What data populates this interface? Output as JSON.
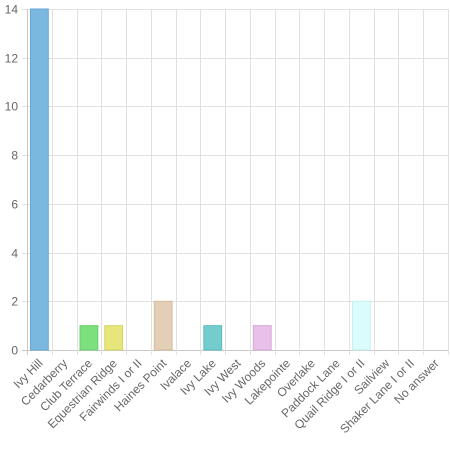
{
  "chart_data": {
    "type": "bar",
    "categories": [
      "Ivy Hill",
      "Cedarberry",
      "Club Terrace",
      "Equestrian Ridge",
      "Fairwinds I or II",
      "Haines Point",
      "Ivalace",
      "Ivy Lake",
      "Ivy West",
      "Ivy Woods",
      "Lakepointe",
      "Overlake",
      "Paddock Lane",
      "Quail Ridge I or II",
      "Sailview",
      "Shaker Lane I or II",
      "No answer"
    ],
    "values": [
      14,
      0,
      1,
      1,
      0,
      2,
      0,
      1,
      0,
      1,
      0,
      0,
      0,
      2,
      0,
      0,
      0
    ],
    "colors": [
      "#7ab8e0",
      "#f7c6b4",
      "#7edf7e",
      "#e6e67a",
      "#bfb7f5",
      "#e3ceb6",
      "#f7c6b4",
      "#74cccc",
      "#c8d8f0",
      "#e8c0e8",
      "#cde8cd",
      "#f0d7b0",
      "#d0d0f0",
      "#dcfcfc",
      "#e6e6e6",
      "#f5e6d6",
      "#e6f0e6"
    ],
    "border_colors": [
      "#67a6d4",
      "#f0b09a",
      "#67cf67",
      "#d4d466",
      "#aaa0ee",
      "#d6bc9e",
      "#f0b09a",
      "#5cbcbc",
      "#b0c4e4",
      "#d8a8d8",
      "#b8d8b8",
      "#e0c494",
      "#bcbce4",
      "#c4f0f0",
      "#d0d0d0",
      "#e8d4c0",
      "#d0e0d0"
    ],
    "ylim": [
      0,
      14
    ],
    "yticks": [
      "0",
      "2",
      "4",
      "6",
      "8",
      "10",
      "12",
      "14"
    ],
    "grid": true,
    "title": "",
    "xlabel": "",
    "ylabel": ""
  }
}
